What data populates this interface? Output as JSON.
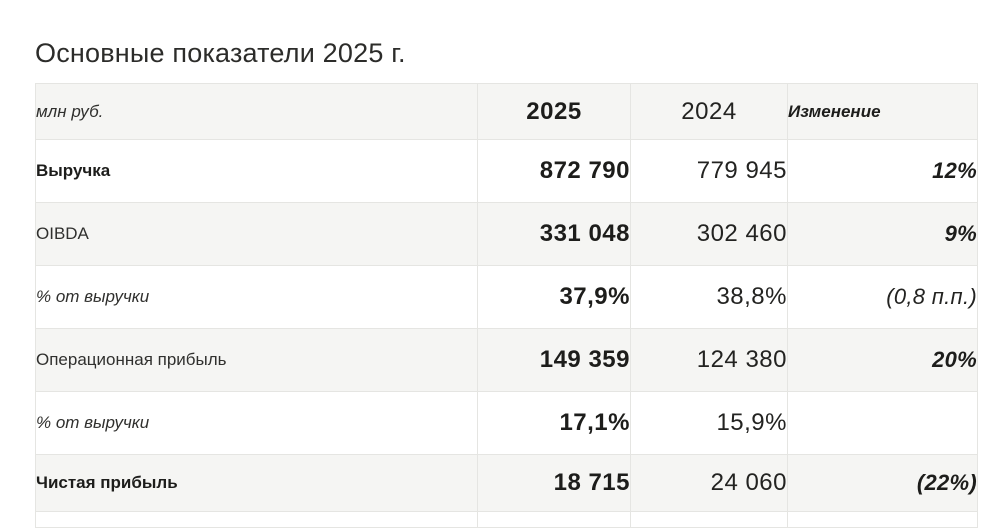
{
  "title": "Основные показатели 2025 г.",
  "table": {
    "unit_header": "млн руб.",
    "col_2025": "2025",
    "col_2024": "2024",
    "col_change": "Изменение",
    "rows": [
      {
        "label": "Выручка",
        "v2025": "872 790",
        "v2024": "779 945",
        "change": "12%",
        "label_style": "bold",
        "change_style": "bold-italic",
        "shaded": false
      },
      {
        "label": "OIBDA",
        "v2025": "331 048",
        "v2024": "302 460",
        "change": "9%",
        "label_style": "regular",
        "change_style": "bold-italic",
        "shaded": true
      },
      {
        "label": "% от выручки",
        "v2025": "37,9%",
        "v2024": "38,8%",
        "change": "(0,8 п.п.)",
        "label_style": "italic",
        "change_style": "italic",
        "shaded": false
      },
      {
        "label": "Операционная прибыль",
        "v2025": "149 359",
        "v2024": "124 380",
        "change": "20%",
        "label_style": "regular",
        "change_style": "bold-italic",
        "shaded": true
      },
      {
        "label": "% от выручки",
        "v2025": "17,1%",
        "v2024": "15,9%",
        "change": "",
        "label_style": "italic",
        "change_style": "italic",
        "shaded": false
      },
      {
        "label": "Чистая прибыль",
        "v2025": "18 715",
        "v2024": "24 060",
        "change": "(22%)",
        "label_style": "bold",
        "change_style": "bold-italic",
        "shaded": true
      }
    ]
  },
  "colors": {
    "shaded_row_bg": "#f5f5f3",
    "border": "#e5e5e2",
    "text_dark": "#1d1d1b",
    "text_regular": "#30302e"
  }
}
